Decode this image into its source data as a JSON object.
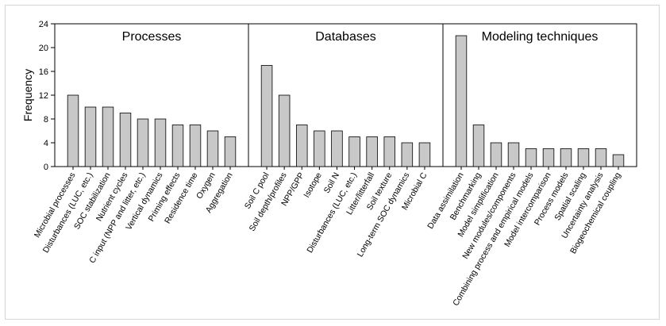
{
  "chart_data": {
    "type": "bar",
    "ylabel": "Frequency",
    "xlabel": "",
    "ylim": [
      0,
      24
    ],
    "yticks": [
      0,
      4,
      8,
      12,
      16,
      20,
      24
    ],
    "grid": false,
    "bar_color": "#c8c8c8",
    "bar_edge_color": "#000000",
    "panels": [
      {
        "title": "Processes",
        "categories": [
          "Microbial processes",
          "Disturbances (LUC, etc.)",
          "SOC stabilization",
          "Nutrient cycles",
          "C input (NPP and litter, etc.)",
          "Vertical dynamics",
          "Priming effects",
          "Residence time",
          "Oxygen",
          "Aggregation"
        ],
        "values": [
          12,
          10,
          10,
          9,
          8,
          8,
          7,
          7,
          6,
          5
        ]
      },
      {
        "title": "Databases",
        "categories": [
          "Soil C pool",
          "Soil depth/profiles",
          "NPP/GPP",
          "Isotope",
          "Soil N",
          "Disturbances (LUC, etc.)",
          "Litter/litterfall",
          "Soil texture",
          "Long-term SOC dynamics",
          "Microbial C"
        ],
        "values": [
          17,
          12,
          7,
          6,
          6,
          5,
          5,
          5,
          4,
          4
        ]
      },
      {
        "title": "Modeling techniques",
        "categories": [
          "Data assimilation",
          "Benchmarking",
          "Model simplification",
          "New modules/components",
          "Combining process and empirical models",
          "Model intercomparison",
          "Process models",
          "Spatial scaling",
          "Uncertainty analysis",
          "Biogeochemical coupling"
        ],
        "values": [
          22,
          7,
          4,
          4,
          3,
          3,
          3,
          3,
          3,
          2
        ]
      }
    ]
  }
}
